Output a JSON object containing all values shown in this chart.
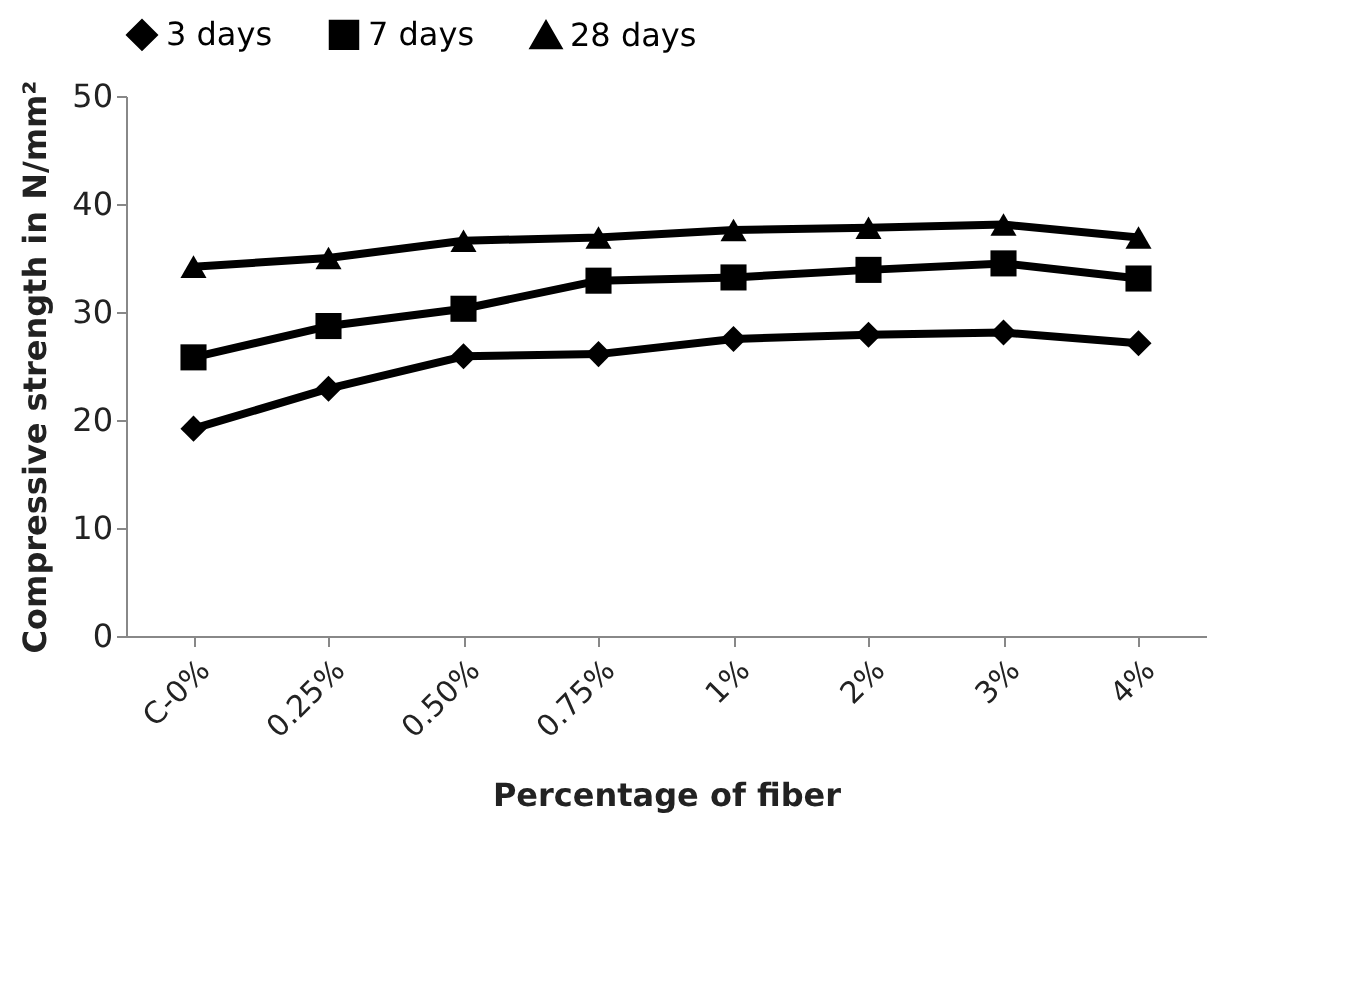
{
  "chart_data": {
    "type": "line",
    "xlabel": "Percentage of fiber",
    "ylabel": "Compressive strength in N/mm²",
    "categories": [
      "C-0%",
      "0.25%",
      "0.50%",
      "0.75%",
      "1%",
      "2%",
      "3%",
      "4%"
    ],
    "series": [
      {
        "name": "3 days",
        "color": "#000000",
        "marker": "diamond",
        "values": [
          19.2,
          22.9,
          25.9,
          26.1,
          27.5,
          27.9,
          28.1,
          27.1
        ]
      },
      {
        "name": "7 days",
        "color": "#000000",
        "marker": "square",
        "values": [
          25.8,
          28.7,
          30.3,
          32.9,
          33.2,
          33.9,
          34.5,
          33.1
        ]
      },
      {
        "name": "28 days",
        "color": "#000000",
        "marker": "triangle",
        "values": [
          34.2,
          35.0,
          36.6,
          36.9,
          37.6,
          37.8,
          38.1,
          36.9
        ]
      }
    ],
    "ylim": [
      0,
      50
    ],
    "yticks": [
      0,
      10,
      20,
      30,
      40,
      50
    ],
    "grid": false,
    "legend": "top",
    "line_style": "solid"
  }
}
